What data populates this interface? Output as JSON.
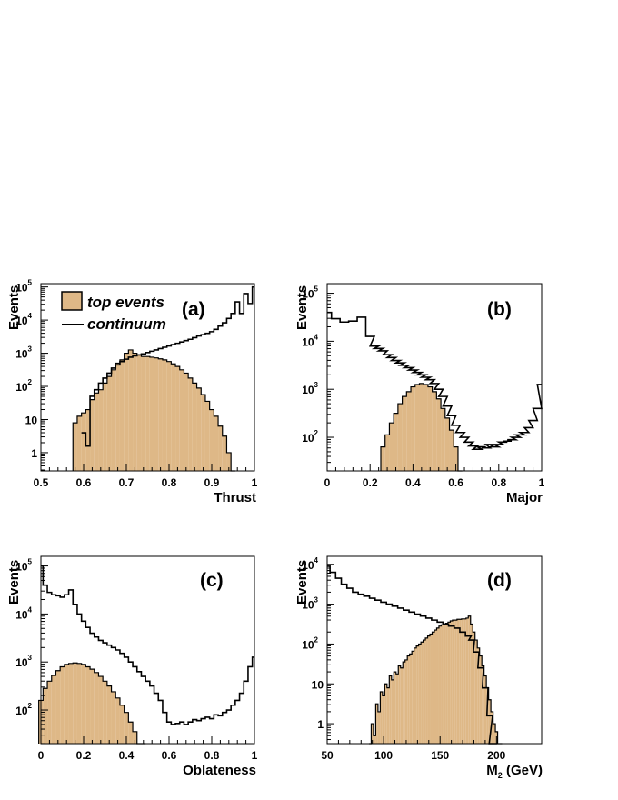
{
  "legend": {
    "top_label": "top events",
    "continuum_label": "continuum",
    "top_color": "#deb887"
  },
  "chart_data": [
    {
      "id": "a",
      "type": "histogram",
      "tag": "(a)",
      "xlabel": "Thrust",
      "ylabel": "Events",
      "xlim": [
        0.5,
        1.0
      ],
      "ylim_log10": [
        -0.55,
        5.1
      ],
      "log_y": true,
      "xticks": [
        0.5,
        0.6,
        0.7,
        0.8,
        0.9,
        1.0
      ],
      "xtick_labels": [
        "0.5",
        "0.6",
        "0.7",
        "0.8",
        "0.9",
        "1"
      ],
      "yticks": [
        {
          "mant": "1",
          "exp": ""
        },
        {
          "mant": "10",
          "exp": ""
        },
        {
          "mant": "10",
          "exp": "2"
        },
        {
          "mant": "10",
          "exp": "3"
        },
        {
          "mant": "10",
          "exp": "4"
        },
        {
          "mant": "10",
          "exp": "5"
        }
      ],
      "series": [
        {
          "name": "top events",
          "style": "filled",
          "x": [
            0.58,
            0.59,
            0.6,
            0.61,
            0.62,
            0.63,
            0.64,
            0.65,
            0.66,
            0.67,
            0.68,
            0.69,
            0.7,
            0.71,
            0.72,
            0.73,
            0.74,
            0.75,
            0.76,
            0.77,
            0.78,
            0.79,
            0.8,
            0.81,
            0.82,
            0.83,
            0.84,
            0.85,
            0.86,
            0.87,
            0.88,
            0.89,
            0.9,
            0.91,
            0.92,
            0.93,
            0.94,
            0.95
          ],
          "y_log10": [
            0.9,
            1.1,
            1.2,
            1.3,
            1.6,
            1.8,
            1.9,
            2.1,
            2.3,
            2.5,
            2.7,
            2.8,
            3.0,
            3.1,
            3.0,
            2.95,
            2.9,
            2.9,
            2.88,
            2.86,
            2.83,
            2.8,
            2.75,
            2.68,
            2.6,
            2.5,
            2.4,
            2.25,
            2.1,
            1.95,
            1.75,
            1.55,
            1.3,
            1.1,
            0.8,
            0.5,
            0.0,
            -0.55
          ]
        },
        {
          "name": "continuum",
          "style": "line",
          "x": [
            0.6,
            0.61,
            0.62,
            0.63,
            0.64,
            0.65,
            0.66,
            0.67,
            0.68,
            0.69,
            0.7,
            0.71,
            0.72,
            0.73,
            0.74,
            0.75,
            0.76,
            0.77,
            0.78,
            0.79,
            0.8,
            0.81,
            0.82,
            0.83,
            0.84,
            0.85,
            0.86,
            0.87,
            0.88,
            0.89,
            0.9,
            0.91,
            0.92,
            0.93,
            0.94,
            0.95,
            0.96,
            0.97,
            0.98,
            0.99,
            1.0
          ],
          "y_log10": [
            0.6,
            0.2,
            1.7,
            1.9,
            2.1,
            2.25,
            2.4,
            2.55,
            2.65,
            2.75,
            2.82,
            2.88,
            2.92,
            2.95,
            2.98,
            3.02,
            3.06,
            3.1,
            3.14,
            3.18,
            3.22,
            3.26,
            3.3,
            3.34,
            3.38,
            3.42,
            3.47,
            3.52,
            3.56,
            3.6,
            3.65,
            3.72,
            3.82,
            3.92,
            4.05,
            4.2,
            4.55,
            4.2,
            4.8,
            4.5,
            5.0
          ]
        }
      ]
    },
    {
      "id": "b",
      "type": "histogram",
      "tag": "(b)",
      "xlabel": "Major",
      "ylabel": "Events",
      "xlim": [
        0,
        1.0
      ],
      "ylim_log10": [
        1.3,
        5.2
      ],
      "log_y": true,
      "xticks": [
        0,
        0.2,
        0.4,
        0.6,
        0.8,
        1.0
      ],
      "xtick_labels": [
        "0",
        "0.2",
        "0.4",
        "0.6",
        "0.8",
        "1"
      ],
      "yticks": [
        {
          "mant": "10",
          "exp": "2"
        },
        {
          "mant": "10",
          "exp": "3"
        },
        {
          "mant": "10",
          "exp": "4"
        },
        {
          "mant": "10",
          "exp": "5"
        }
      ],
      "series": [
        {
          "name": "top events",
          "style": "filled",
          "x": [
            0.26,
            0.28,
            0.3,
            0.32,
            0.34,
            0.36,
            0.38,
            0.4,
            0.42,
            0.44,
            0.46,
            0.48,
            0.5,
            0.52,
            0.54,
            0.56,
            0.58,
            0.6,
            0.62
          ],
          "y_log10": [
            1.8,
            2.05,
            2.3,
            2.5,
            2.7,
            2.85,
            2.95,
            3.05,
            3.1,
            3.12,
            3.1,
            3.05,
            2.95,
            2.8,
            2.6,
            2.4,
            2.15,
            1.8,
            1.3
          ]
        },
        {
          "name": "continuum",
          "style": "line",
          "x": [
            0.0,
            0.04,
            0.08,
            0.12,
            0.16,
            0.2,
            0.22,
            0.24,
            0.26,
            0.28,
            0.3,
            0.32,
            0.34,
            0.36,
            0.38,
            0.4,
            0.42,
            0.44,
            0.46,
            0.48,
            0.5,
            0.52,
            0.54,
            0.56,
            0.58,
            0.6,
            0.62,
            0.64,
            0.66,
            0.68,
            0.7,
            0.72,
            0.74,
            0.76,
            0.78,
            0.8,
            0.82,
            0.84,
            0.86,
            0.88,
            0.9,
            0.92,
            0.94,
            0.96,
            0.98,
            1.0
          ],
          "y_log10": [
            4.6,
            4.47,
            4.4,
            4.42,
            4.5,
            4.1,
            3.9,
            3.85,
            3.8,
            3.72,
            3.66,
            3.6,
            3.55,
            3.5,
            3.45,
            3.4,
            3.35,
            3.3,
            3.25,
            3.2,
            3.12,
            3.0,
            2.85,
            2.65,
            2.45,
            2.25,
            2.1,
            2.0,
            1.9,
            1.82,
            1.75,
            1.8,
            1.78,
            1.85,
            1.8,
            1.85,
            1.9,
            1.92,
            1.95,
            2.0,
            2.05,
            2.1,
            2.2,
            2.35,
            2.6,
            3.1
          ]
        }
      ]
    },
    {
      "id": "c",
      "type": "histogram",
      "tag": "(c)",
      "xlabel": "Oblateness",
      "ylabel": "Events",
      "xlim": [
        0,
        1.0
      ],
      "ylim_log10": [
        1.3,
        5.2
      ],
      "log_y": true,
      "xticks": [
        0,
        0.2,
        0.4,
        0.6,
        0.8,
        1.0
      ],
      "xtick_labels": [
        "0",
        "0.2",
        "0.4",
        "0.6",
        "0.8",
        "1"
      ],
      "yticks": [
        {
          "mant": "10",
          "exp": "2"
        },
        {
          "mant": "10",
          "exp": "3"
        },
        {
          "mant": "10",
          "exp": "4"
        },
        {
          "mant": "10",
          "exp": "5"
        }
      ],
      "series": [
        {
          "name": "top events",
          "style": "filled",
          "x": [
            0.0,
            0.02,
            0.04,
            0.06,
            0.08,
            0.1,
            0.12,
            0.14,
            0.16,
            0.18,
            0.2,
            0.22,
            0.24,
            0.26,
            0.28,
            0.3,
            0.32,
            0.34,
            0.36,
            0.38,
            0.4,
            0.42,
            0.44,
            0.46,
            0.48
          ],
          "y_log10": [
            2.2,
            2.45,
            2.6,
            2.72,
            2.82,
            2.9,
            2.95,
            2.97,
            2.98,
            2.97,
            2.95,
            2.9,
            2.85,
            2.78,
            2.7,
            2.6,
            2.5,
            2.38,
            2.25,
            2.1,
            1.95,
            1.75,
            1.55,
            1.3,
            1.3
          ]
        },
        {
          "name": "continuum",
          "style": "line",
          "x": [
            0.0,
            0.02,
            0.04,
            0.06,
            0.08,
            0.1,
            0.12,
            0.14,
            0.16,
            0.18,
            0.2,
            0.22,
            0.24,
            0.26,
            0.28,
            0.3,
            0.32,
            0.34,
            0.36,
            0.38,
            0.4,
            0.42,
            0.44,
            0.46,
            0.48,
            0.5,
            0.52,
            0.54,
            0.56,
            0.58,
            0.6,
            0.62,
            0.64,
            0.66,
            0.68,
            0.7,
            0.72,
            0.74,
            0.76,
            0.78,
            0.8,
            0.82,
            0.84,
            0.86,
            0.88,
            0.9,
            0.92,
            0.94,
            0.96,
            0.98,
            1.0
          ],
          "y_log10": [
            5.0,
            4.6,
            4.45,
            4.4,
            4.38,
            4.35,
            4.4,
            4.5,
            4.2,
            4.0,
            3.85,
            3.72,
            3.6,
            3.52,
            3.45,
            3.4,
            3.35,
            3.3,
            3.25,
            3.18,
            3.1,
            3.0,
            2.9,
            2.8,
            2.7,
            2.6,
            2.5,
            2.35,
            2.2,
            1.95,
            1.75,
            1.7,
            1.72,
            1.75,
            1.7,
            1.75,
            1.8,
            1.78,
            1.82,
            1.85,
            1.82,
            1.9,
            1.88,
            1.95,
            2.0,
            2.1,
            2.2,
            2.35,
            2.6,
            2.9,
            3.1
          ]
        }
      ]
    },
    {
      "id": "d",
      "type": "histogram",
      "tag": "(d)",
      "xlabel": "M",
      "xlabel_sub": "2",
      "xlabel_suffix": " (GeV)",
      "ylabel": "Events",
      "xlim": [
        50,
        240
      ],
      "ylim_log10": [
        -0.5,
        4.2
      ],
      "log_y": true,
      "xticks": [
        50,
        100,
        150,
        200
      ],
      "xtick_labels": [
        "50",
        "100",
        "150",
        "200"
      ],
      "yticks": [
        {
          "mant": "1",
          "exp": ""
        },
        {
          "mant": "10",
          "exp": ""
        },
        {
          "mant": "10",
          "exp": "2"
        },
        {
          "mant": "10",
          "exp": "3"
        },
        {
          "mant": "10",
          "exp": "4"
        }
      ],
      "series": [
        {
          "name": "top events",
          "style": "filled",
          "x": [
            88,
            90,
            92,
            94,
            96,
            98,
            100,
            102,
            104,
            106,
            108,
            110,
            112,
            114,
            116,
            118,
            120,
            122,
            124,
            126,
            128,
            130,
            132,
            134,
            136,
            138,
            140,
            142,
            144,
            146,
            148,
            150,
            152,
            154,
            156,
            158,
            160,
            162,
            164,
            166,
            168,
            170,
            172,
            174,
            176,
            178,
            180,
            182,
            184,
            186,
            188,
            190,
            192,
            194,
            196,
            198,
            200,
            202,
            204
          ],
          "y_log10": [
            -0.5,
            0.0,
            -0.3,
            0.5,
            0.3,
            0.8,
            0.7,
            1.0,
            0.9,
            1.2,
            1.1,
            1.3,
            1.25,
            1.45,
            1.4,
            1.55,
            1.6,
            1.7,
            1.75,
            1.82,
            1.9,
            1.95,
            2.0,
            2.05,
            2.1,
            2.15,
            2.2,
            2.25,
            2.3,
            2.35,
            2.4,
            2.45,
            2.48,
            2.5,
            2.52,
            2.55,
            2.58,
            2.6,
            2.6,
            2.62,
            2.62,
            2.63,
            2.63,
            2.65,
            2.7,
            2.5,
            2.3,
            2.1,
            1.9,
            1.7,
            1.45,
            1.2,
            0.9,
            0.6,
            0.3,
            0.0,
            -0.2,
            -0.5,
            -0.5
          ]
        },
        {
          "name": "continuum",
          "style": "line",
          "x": [
            50,
            55,
            60,
            65,
            70,
            75,
            80,
            85,
            90,
            95,
            100,
            105,
            110,
            115,
            120,
            125,
            130,
            135,
            140,
            145,
            150,
            155,
            160,
            165,
            170,
            175,
            178,
            182,
            186,
            190,
            194,
            196,
            198
          ],
          "y_log10": [
            3.95,
            3.8,
            3.65,
            3.5,
            3.4,
            3.3,
            3.25,
            3.2,
            3.15,
            3.1,
            3.05,
            3.0,
            2.95,
            2.9,
            2.85,
            2.8,
            2.75,
            2.7,
            2.65,
            2.6,
            2.55,
            2.5,
            2.45,
            2.4,
            2.3,
            2.2,
            2.1,
            1.8,
            1.4,
            0.9,
            0.2,
            -0.5,
            -0.5
          ]
        }
      ]
    }
  ]
}
